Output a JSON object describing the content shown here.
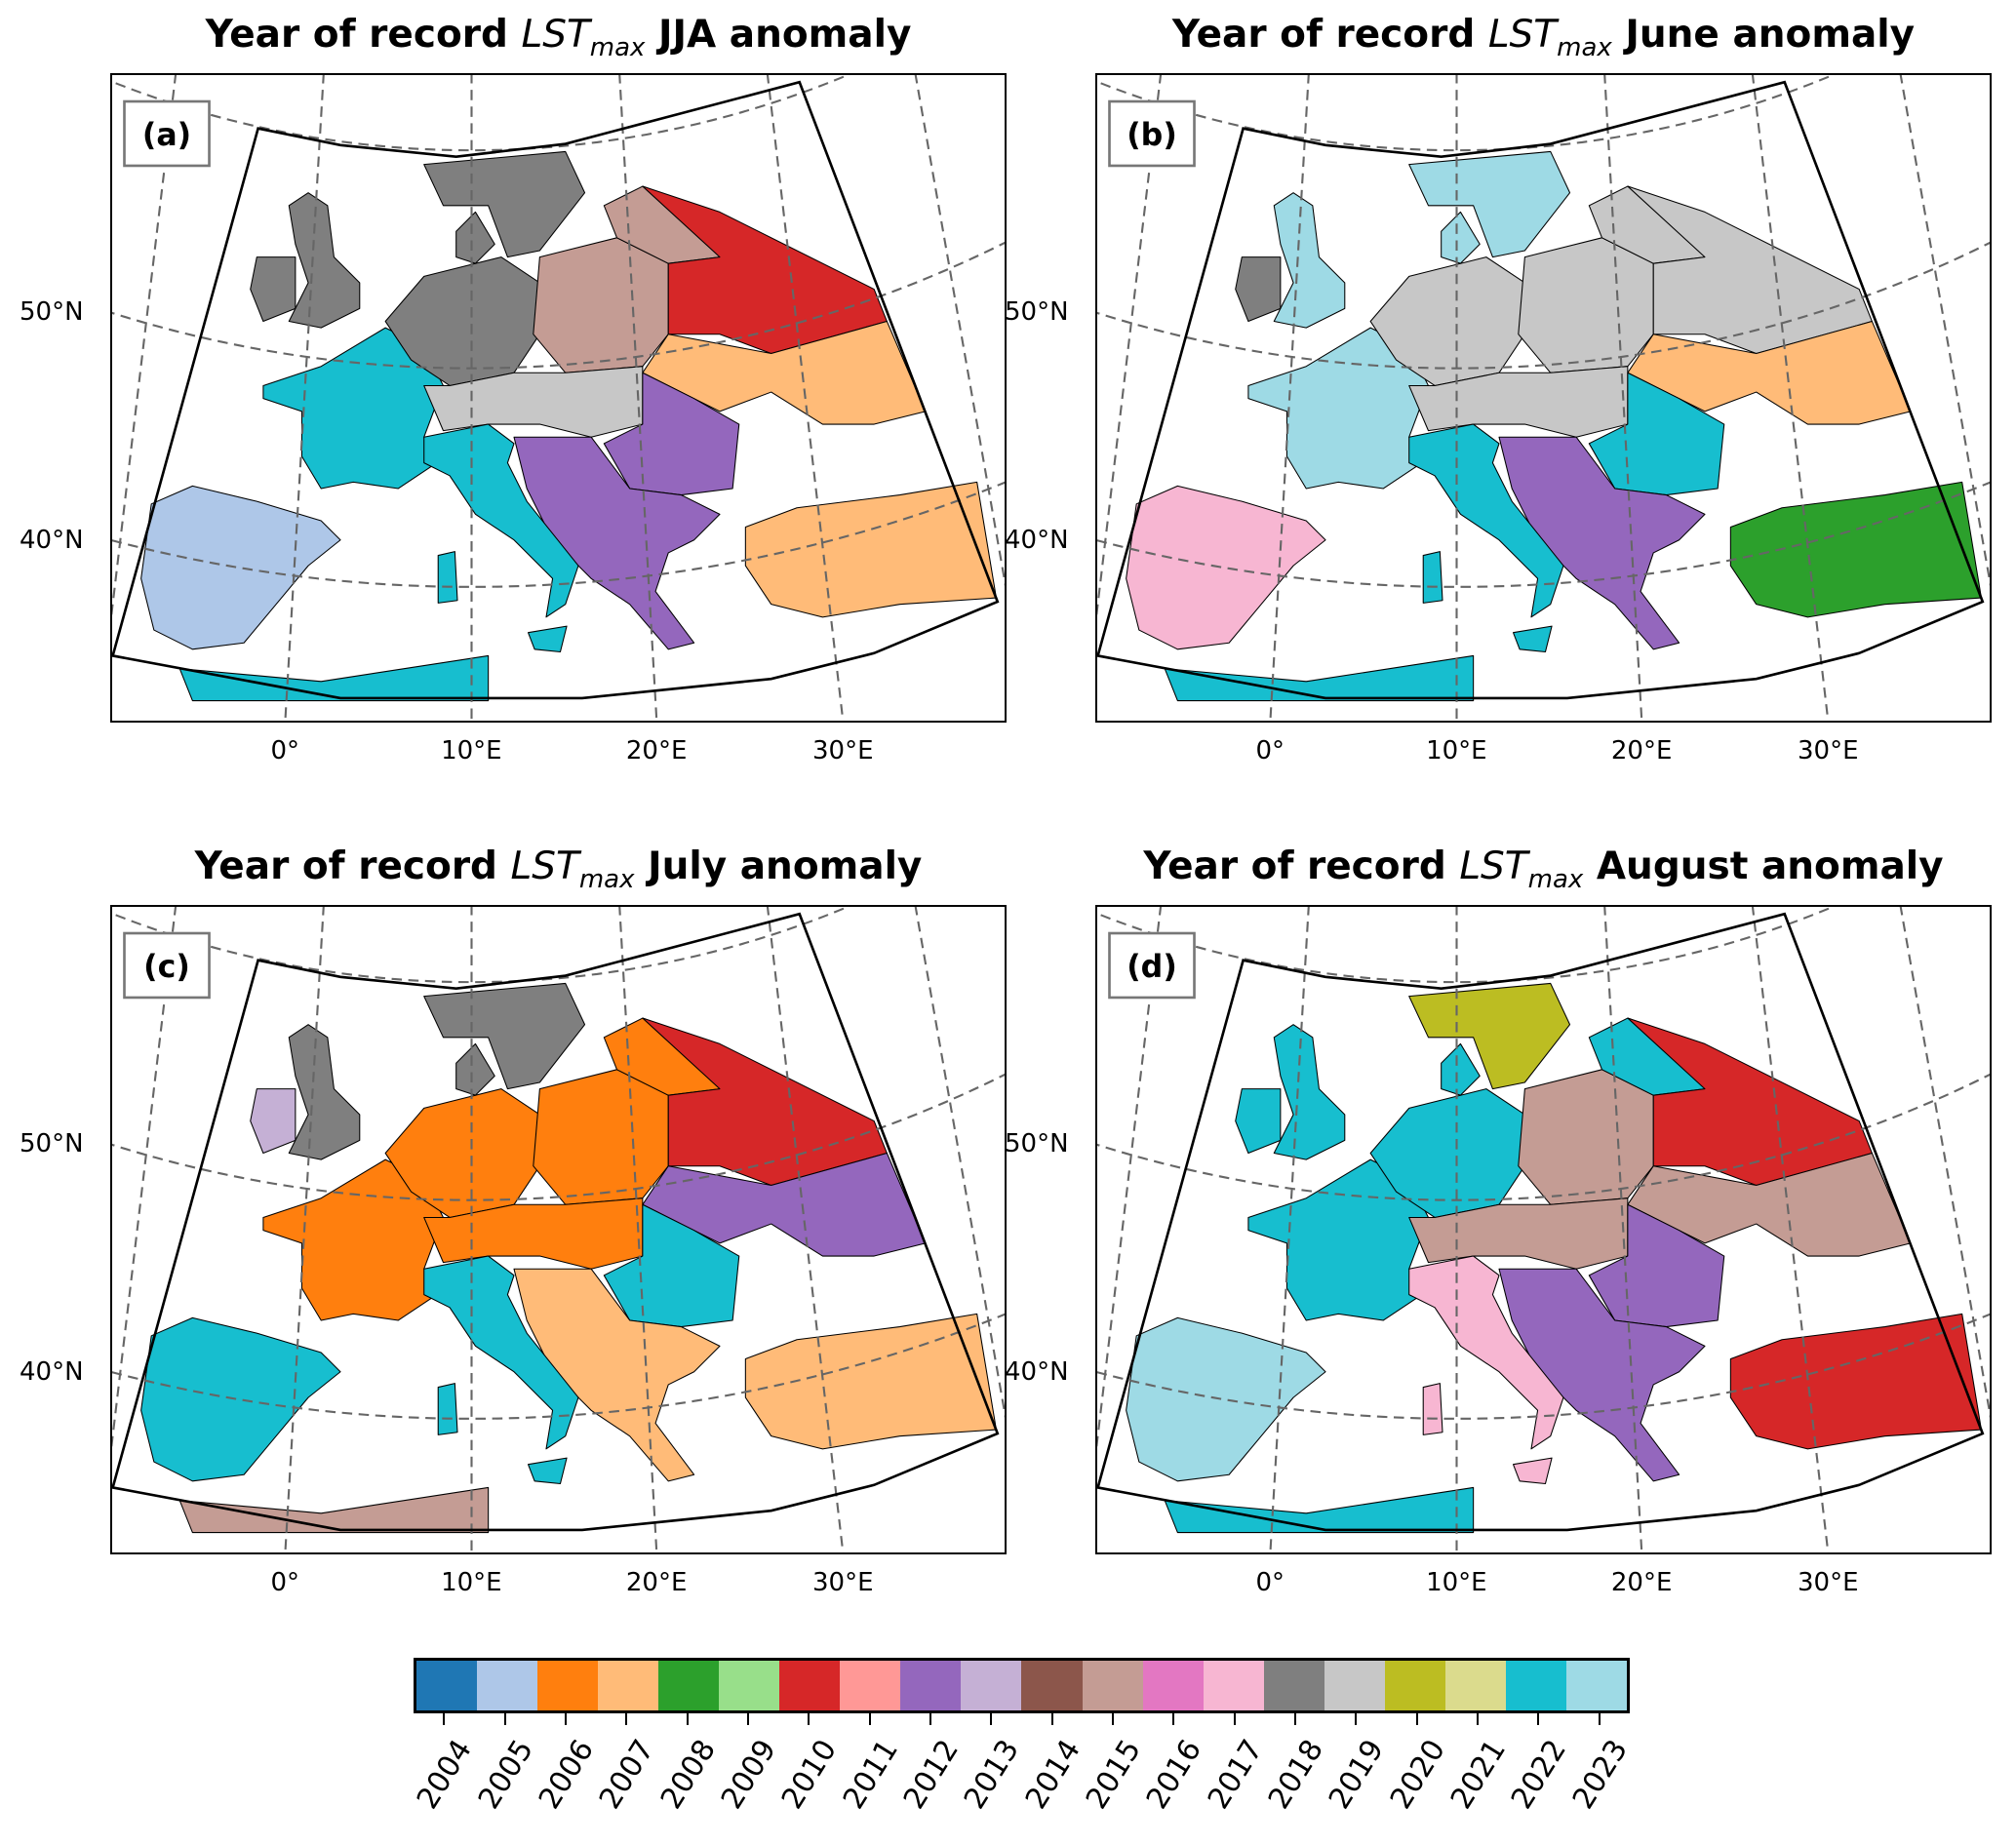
{
  "panels": [
    {
      "id": "a",
      "label": "(a)",
      "title_prefix": "Year of record ",
      "title_var": "LST",
      "title_sub": "max",
      "title_suffix": " JJA anomaly",
      "dominant_record_year": {
        "iberia": 2005,
        "france": 2022,
        "great_britain": 2018,
        "ireland": 2018,
        "germany_benelux": 2018,
        "denmark": 2018,
        "scandinavia": 2018,
        "poland": 2015,
        "baltics": 2015,
        "belarus_russia": 2010,
        "ukraine": 2007,
        "central_europe": 2019,
        "romania": 2012,
        "balkans": 2012,
        "italy": 2022,
        "sicily": 2022,
        "sardinia": 2022,
        "turkey": 2007,
        "north_africa": 2022
      }
    },
    {
      "id": "b",
      "label": "(b)",
      "title_prefix": "Year of record ",
      "title_var": "LST",
      "title_sub": "max",
      "title_suffix": " June anomaly",
      "dominant_record_year": {
        "iberia": 2017,
        "france": 2023,
        "great_britain": 2023,
        "ireland": 2018,
        "germany_benelux": 2019,
        "denmark": 2023,
        "scandinavia": 2023,
        "poland": 2019,
        "baltics": 2019,
        "belarus_russia": 2019,
        "ukraine": 2007,
        "central_europe": 2019,
        "romania": 2022,
        "balkans": 2012,
        "italy": 2022,
        "sicily": 2022,
        "sardinia": 2022,
        "turkey": 2008,
        "north_africa": 2022
      }
    },
    {
      "id": "c",
      "label": "(c)",
      "title_prefix": "Year of record ",
      "title_var": "LST",
      "title_sub": "max",
      "title_suffix": " July anomaly",
      "dominant_record_year": {
        "iberia": 2022,
        "france": 2006,
        "great_britain": 2018,
        "ireland": 2013,
        "germany_benelux": 2006,
        "denmark": 2018,
        "scandinavia": 2018,
        "poland": 2006,
        "baltics": 2006,
        "belarus_russia": 2010,
        "ukraine": 2012,
        "central_europe": 2006,
        "romania": 2022,
        "balkans": 2007,
        "italy": 2022,
        "sicily": 2022,
        "sardinia": 2022,
        "turkey": 2007,
        "north_africa": 2015
      }
    },
    {
      "id": "d",
      "label": "(d)",
      "title_prefix": "Year of record ",
      "title_var": "LST",
      "title_sub": "max",
      "title_suffix": " August anomaly",
      "dominant_record_year": {
        "iberia": 2023,
        "france": 2022,
        "great_britain": 2022,
        "ireland": 2022,
        "germany_benelux": 2022,
        "denmark": 2022,
        "scandinavia": 2020,
        "poland": 2015,
        "baltics": 2022,
        "belarus_russia": 2010,
        "ukraine": 2015,
        "central_europe": 2015,
        "romania": 2012,
        "balkans": 2012,
        "italy": 2017,
        "sicily": 2017,
        "sardinia": 2017,
        "turkey": 2010,
        "north_africa": 2022
      }
    }
  ],
  "lat_labels": [
    "50°N",
    "40°N"
  ],
  "lon_labels": [
    "0°",
    "10°E",
    "20°E",
    "30°E"
  ],
  "colorbar": {
    "years": [
      "2004",
      "2005",
      "2006",
      "2007",
      "2008",
      "2009",
      "2010",
      "2011",
      "2012",
      "2013",
      "2014",
      "2015",
      "2016",
      "2017",
      "2018",
      "2019",
      "2020",
      "2021",
      "2022",
      "2023"
    ],
    "colors": [
      "#1f77b4",
      "#aec7e8",
      "#ff7f0e",
      "#ffbb78",
      "#2ca02c",
      "#98df8a",
      "#d62728",
      "#ff9896",
      "#9467bd",
      "#c5b0d5",
      "#8c564b",
      "#c49c94",
      "#e377c2",
      "#f7b6d2",
      "#7f7f7f",
      "#c7c7c7",
      "#bcbd22",
      "#dbdb8d",
      "#17becf",
      "#9edae5"
    ]
  }
}
